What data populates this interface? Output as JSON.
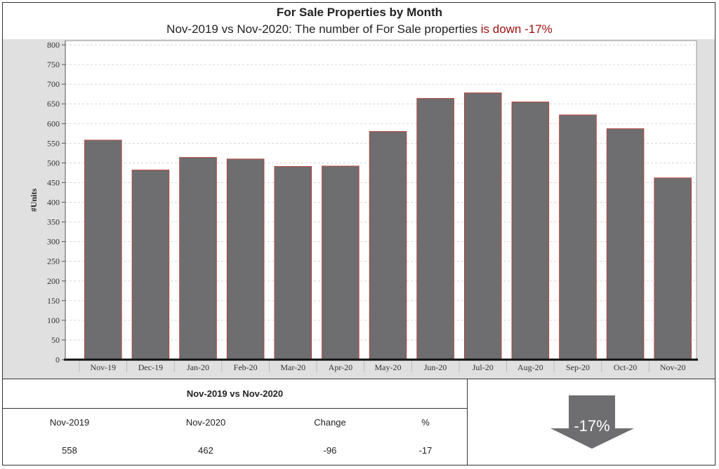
{
  "chart_data": {
    "type": "bar",
    "title": "For Sale Properties by Month",
    "subtitle": {
      "prefix": "Nov-2019 vs Nov-2020: The number of For Sale properties ",
      "highlight": "is down -17%"
    },
    "ylabel": "#Units",
    "xlabel": "",
    "ylim": [
      0,
      800
    ],
    "yticks": [
      0,
      50,
      100,
      150,
      200,
      250,
      300,
      350,
      400,
      450,
      500,
      550,
      600,
      650,
      700,
      750,
      800
    ],
    "grid": true,
    "categories": [
      "Nov-19",
      "Dec-19",
      "Jan-20",
      "Feb-20",
      "Mar-20",
      "Apr-20",
      "May-20",
      "Jun-20",
      "Jul-20",
      "Aug-20",
      "Sep-20",
      "Oct-20",
      "Nov-20"
    ],
    "values": [
      558,
      482,
      514,
      510,
      491,
      492,
      580,
      664,
      678,
      655,
      622,
      587,
      462
    ],
    "colors": {
      "bar": "#6e6e70",
      "bar_edge": "#c0392b",
      "plot_bg": "#ffffff",
      "outer_bg": "#e0e0e0",
      "grid": "#d6d6d6"
    }
  },
  "comparison": {
    "heading": "Nov-2019 vs Nov-2020",
    "headers": [
      "Nov-2019",
      "Nov-2020",
      "Change",
      "%"
    ],
    "values": [
      "558",
      "462",
      "-96",
      "-17"
    ]
  },
  "indicator": {
    "label": "-17%",
    "direction": "down",
    "color": "#6e6e70"
  }
}
